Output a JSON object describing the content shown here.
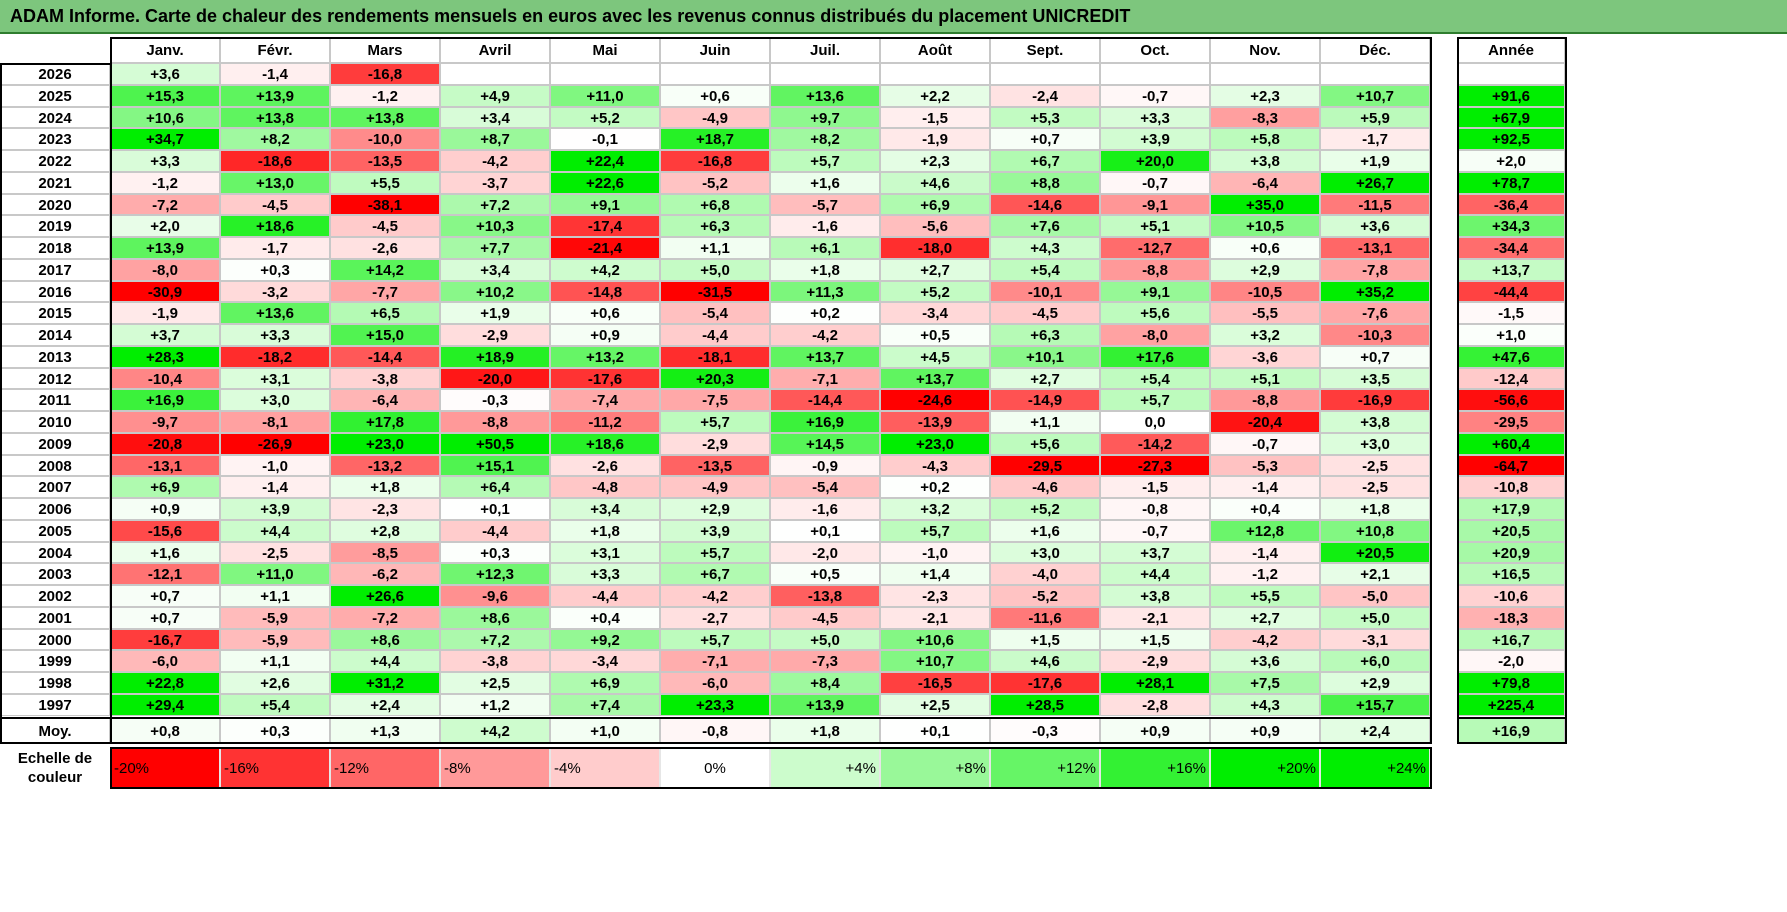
{
  "chart_data": {
    "type": "heatmap",
    "title": "ADAM Informe. Carte de chaleur des rendements mensuels en euros avec les revenus connus distribués du placement UNICREDIT",
    "months": [
      "Janv.",
      "Févr.",
      "Mars",
      "Avril",
      "Mai",
      "Juin",
      "Juil.",
      "Août",
      "Sept.",
      "Oct.",
      "Nov.",
      "Déc."
    ],
    "year_header": "Année",
    "rows": [
      {
        "year": "2026",
        "values": [
          3.6,
          -1.4,
          -16.8,
          null,
          null,
          null,
          null,
          null,
          null,
          null,
          null,
          null
        ],
        "annual": null
      },
      {
        "year": "2025",
        "values": [
          15.3,
          13.9,
          -1.2,
          4.9,
          11.0,
          0.6,
          13.6,
          2.2,
          -2.4,
          -0.7,
          2.3,
          10.7
        ],
        "annual": 91.6
      },
      {
        "year": "2024",
        "values": [
          10.6,
          13.8,
          13.8,
          3.4,
          5.2,
          -4.9,
          9.7,
          -1.5,
          5.3,
          3.3,
          -8.3,
          5.9
        ],
        "annual": 67.9
      },
      {
        "year": "2023",
        "values": [
          34.7,
          8.2,
          -10.0,
          8.7,
          -0.1,
          18.7,
          8.2,
          -1.9,
          0.7,
          3.9,
          5.8,
          -1.7
        ],
        "annual": 92.5
      },
      {
        "year": "2022",
        "values": [
          3.3,
          -18.6,
          -13.5,
          -4.2,
          22.4,
          -16.8,
          5.7,
          2.3,
          6.7,
          20.0,
          3.8,
          1.9
        ],
        "annual": 2.0
      },
      {
        "year": "2021",
        "values": [
          -1.2,
          13.0,
          5.5,
          -3.7,
          22.6,
          -5.2,
          1.6,
          4.6,
          8.8,
          -0.7,
          -6.4,
          26.7
        ],
        "annual": 78.7
      },
      {
        "year": "2020",
        "values": [
          -7.2,
          -4.5,
          -38.1,
          7.2,
          9.1,
          6.8,
          -5.7,
          6.9,
          -14.6,
          -9.1,
          35.0,
          -11.5
        ],
        "annual": -36.4
      },
      {
        "year": "2019",
        "values": [
          2.0,
          18.6,
          -4.5,
          10.3,
          -17.4,
          6.3,
          -1.6,
          -5.6,
          7.6,
          5.1,
          10.5,
          3.6
        ],
        "annual": 34.3
      },
      {
        "year": "2018",
        "values": [
          13.9,
          -1.7,
          -2.6,
          7.7,
          -21.4,
          1.1,
          6.1,
          -18.0,
          4.3,
          -12.7,
          0.6,
          -13.1
        ],
        "annual": -34.4
      },
      {
        "year": "2017",
        "values": [
          -8.0,
          0.3,
          14.2,
          3.4,
          4.2,
          5.0,
          1.8,
          2.7,
          5.4,
          -8.8,
          2.9,
          -7.8
        ],
        "annual": 13.7
      },
      {
        "year": "2016",
        "values": [
          -30.9,
          -3.2,
          -7.7,
          10.2,
          -14.8,
          -31.5,
          11.3,
          5.2,
          -10.1,
          9.1,
          -10.5,
          35.2
        ],
        "annual": -44.4
      },
      {
        "year": "2015",
        "values": [
          -1.9,
          13.6,
          6.5,
          1.9,
          0.6,
          -5.4,
          0.2,
          -3.4,
          -4.5,
          5.6,
          -5.5,
          -7.6
        ],
        "annual": -1.5
      },
      {
        "year": "2014",
        "values": [
          3.7,
          3.3,
          15.0,
          -2.9,
          0.9,
          -4.4,
          -4.2,
          0.5,
          6.3,
          -8.0,
          3.2,
          -10.3
        ],
        "annual": 1.0
      },
      {
        "year": "2013",
        "values": [
          28.3,
          -18.2,
          -14.4,
          18.9,
          13.2,
          -18.1,
          13.7,
          4.5,
          10.1,
          17.6,
          -3.6,
          0.7
        ],
        "annual": 47.6
      },
      {
        "year": "2012",
        "values": [
          -10.4,
          3.1,
          -3.8,
          -20.0,
          -17.6,
          20.3,
          -7.1,
          13.7,
          2.7,
          5.4,
          5.1,
          3.5
        ],
        "annual": -12.4
      },
      {
        "year": "2011",
        "values": [
          16.9,
          3.0,
          -6.4,
          -0.3,
          -7.4,
          -7.5,
          -14.4,
          -24.6,
          -14.9,
          5.7,
          -8.8,
          -16.9
        ],
        "annual": -56.6
      },
      {
        "year": "2010",
        "values": [
          -9.7,
          -8.1,
          17.8,
          -8.8,
          -11.2,
          5.7,
          16.9,
          -13.9,
          1.1,
          0.0,
          -20.4,
          3.8
        ],
        "annual": -29.5
      },
      {
        "year": "2009",
        "values": [
          -20.8,
          -26.9,
          23.0,
          50.5,
          18.6,
          -2.9,
          14.5,
          23.0,
          5.6,
          -14.2,
          -0.7,
          3.0
        ],
        "annual": 60.4
      },
      {
        "year": "2008",
        "values": [
          -13.1,
          -1.0,
          -13.2,
          15.1,
          -2.6,
          -13.5,
          -0.9,
          -4.3,
          -29.5,
          -27.3,
          -5.3,
          -2.5
        ],
        "annual": -64.7
      },
      {
        "year": "2007",
        "values": [
          6.9,
          -1.4,
          1.8,
          6.4,
          -4.8,
          -4.9,
          -5.4,
          0.2,
          -4.6,
          -1.5,
          -1.4,
          -2.5
        ],
        "annual": -10.8
      },
      {
        "year": "2006",
        "values": [
          0.9,
          3.9,
          -2.3,
          0.1,
          3.4,
          2.9,
          -1.6,
          3.2,
          5.2,
          -0.8,
          0.4,
          1.8
        ],
        "annual": 17.9
      },
      {
        "year": "2005",
        "values": [
          -15.6,
          4.4,
          2.8,
          -4.4,
          1.8,
          3.9,
          0.1,
          5.7,
          1.6,
          -0.7,
          12.8,
          10.8
        ],
        "annual": 20.5
      },
      {
        "year": "2004",
        "values": [
          1.6,
          -2.5,
          -8.5,
          0.3,
          3.1,
          5.7,
          -2.0,
          -1.0,
          3.0,
          3.7,
          -1.4,
          20.5
        ],
        "annual": 20.9
      },
      {
        "year": "2003",
        "values": [
          -12.1,
          11.0,
          -6.2,
          12.3,
          3.3,
          6.7,
          0.5,
          1.4,
          -4.0,
          4.4,
          -1.2,
          2.1
        ],
        "annual": 16.5
      },
      {
        "year": "2002",
        "values": [
          0.7,
          1.1,
          26.6,
          -9.6,
          -4.4,
          -4.2,
          -13.8,
          -2.3,
          -5.2,
          3.8,
          5.5,
          -5.0
        ],
        "annual": -10.6
      },
      {
        "year": "2001",
        "values": [
          0.7,
          -5.9,
          -7.2,
          8.6,
          0.4,
          -2.7,
          -4.5,
          -2.1,
          -11.6,
          -2.1,
          2.7,
          5.0
        ],
        "annual": -18.3
      },
      {
        "year": "2000",
        "values": [
          -16.7,
          -5.9,
          8.6,
          7.2,
          9.2,
          5.7,
          5.0,
          10.6,
          1.5,
          1.5,
          -4.2,
          -3.1
        ],
        "annual": 16.7
      },
      {
        "year": "1999",
        "values": [
          -6.0,
          1.1,
          4.4,
          -3.8,
          -3.4,
          -7.1,
          -7.3,
          10.7,
          4.6,
          -2.9,
          3.6,
          6.0
        ],
        "annual": -2.0
      },
      {
        "year": "1998",
        "values": [
          22.8,
          2.6,
          31.2,
          2.5,
          6.9,
          -6.0,
          8.4,
          -16.5,
          -17.6,
          28.1,
          7.5,
          2.9
        ],
        "annual": 79.8
      },
      {
        "year": "1997",
        "values": [
          29.4,
          5.4,
          2.4,
          1.2,
          7.4,
          23.3,
          13.9,
          2.5,
          28.5,
          -2.8,
          4.3,
          15.7
        ],
        "annual": 225.4
      }
    ],
    "average": {
      "label": "Moy.",
      "values": [
        0.8,
        0.3,
        1.3,
        4.2,
        1.0,
        -0.8,
        1.8,
        0.1,
        -0.3,
        0.9,
        0.9,
        2.4
      ],
      "annual": 16.9
    },
    "scale": {
      "label": "Echelle de couleur",
      "steps": [
        {
          "label": "-20%",
          "value": -20
        },
        {
          "label": "-16%",
          "value": -16
        },
        {
          "label": "-12%",
          "value": -12
        },
        {
          "label": "-8%",
          "value": -8
        },
        {
          "label": "-4%",
          "value": -4
        },
        {
          "label": "0%",
          "value": 0
        },
        {
          "label": "+4%",
          "value": 4
        },
        {
          "label": "+8%",
          "value": 8
        },
        {
          "label": "+12%",
          "value": 12
        },
        {
          "label": "+16%",
          "value": 16
        },
        {
          "label": "+20%",
          "value": 20
        },
        {
          "label": "+24%",
          "value": 24
        }
      ]
    },
    "colors": {
      "positive_max": "#00ee00",
      "negative_max": "#ff0000",
      "neutral": "#ffffff",
      "title_bar": "#7dc67d"
    }
  }
}
